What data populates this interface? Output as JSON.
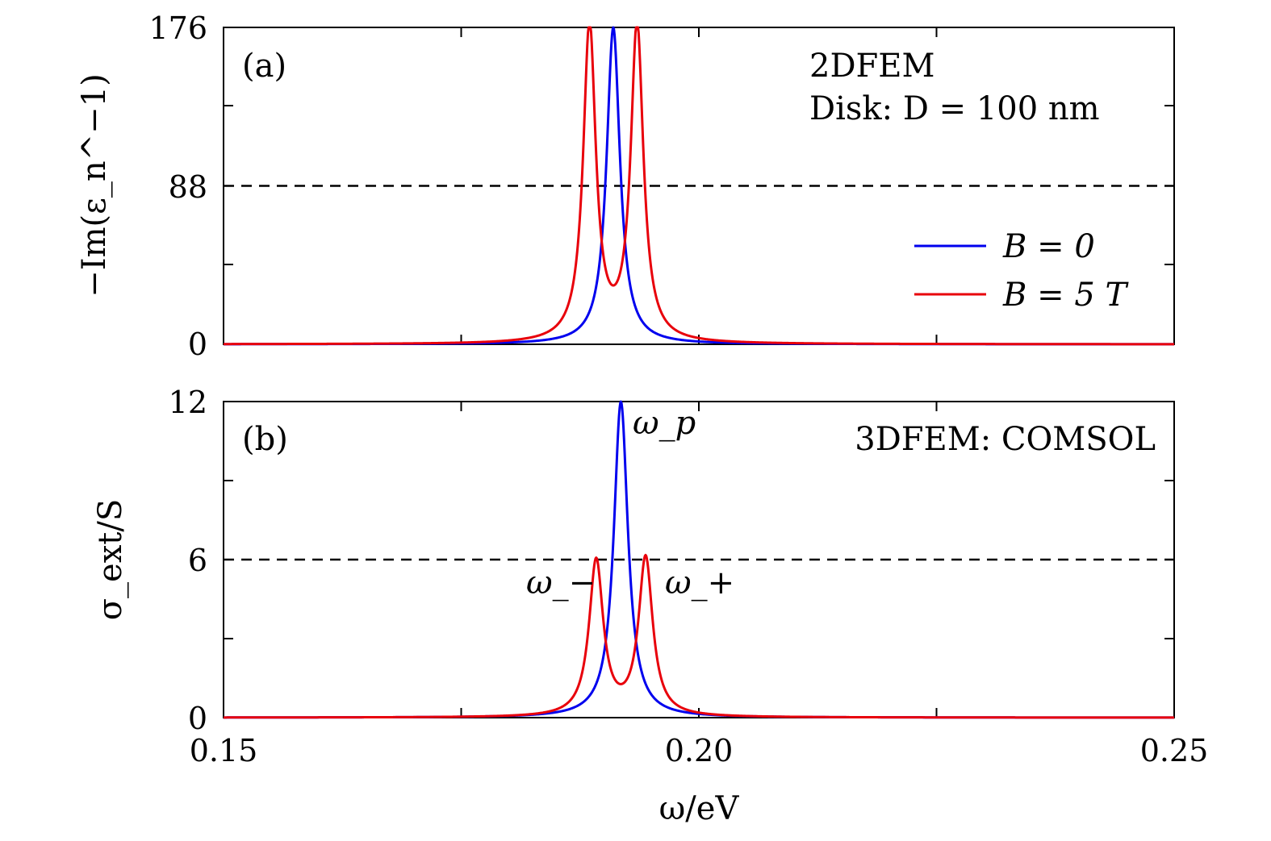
{
  "colors": {
    "blue": "#0000ee",
    "red": "#e8000b",
    "reference": "#000000"
  },
  "xlabel": "ω/eV",
  "x_tick_labels": [
    "0.15",
    "0.20",
    "0.25"
  ],
  "chart_data": [
    {
      "type": "line",
      "panel_label": "(a)",
      "annotation_lines": [
        "2DFEM",
        "Disk: D = 100 nm"
      ],
      "xlabel": "ω/eV",
      "ylabel": "−Im(ε_n^−1)",
      "xlim": [
        0.15,
        0.25
      ],
      "ylim": [
        0,
        176
      ],
      "y_tick_labels": [
        "0",
        "88",
        "176"
      ],
      "reference_line": {
        "y": 88,
        "style": "dashed"
      },
      "legend": {
        "position": "right",
        "entries": [
          "B = 0",
          "B = 5 T"
        ]
      },
      "series": [
        {
          "name": "B = 0",
          "color": "#0000ee",
          "peaks": [
            {
              "x": 0.191,
              "y": 176,
              "width": 0.00085
            }
          ]
        },
        {
          "name": "B = 5 T",
          "color": "#e8000b",
          "peaks": [
            {
              "x": 0.1885,
              "y": 176,
              "width": 0.0008
            },
            {
              "x": 0.1935,
              "y": 176,
              "width": 0.0008
            }
          ]
        }
      ]
    },
    {
      "type": "line",
      "panel_label": "(b)",
      "annotation_lines": [
        "3DFEM: COMSOL"
      ],
      "peak_labels": [
        "ω_p",
        "ω_−",
        "ω_+"
      ],
      "xlabel": "ω/eV",
      "ylabel": "σ_ext/S",
      "xlim": [
        0.15,
        0.25
      ],
      "ylim": [
        0,
        12
      ],
      "y_tick_labels": [
        "0",
        "6",
        "12"
      ],
      "reference_line": {
        "y": 6,
        "style": "dashed"
      },
      "series": [
        {
          "name": "B = 0",
          "color": "#0000ee",
          "peaks": [
            {
              "x": 0.1918,
              "y": 12,
              "width": 0.0009
            }
          ]
        },
        {
          "name": "B = 5 T",
          "color": "#e8000b",
          "peaks": [
            {
              "x": 0.1892,
              "y": 5.9,
              "width": 0.0009
            },
            {
              "x": 0.1944,
              "y": 6.0,
              "width": 0.0009
            }
          ]
        }
      ]
    }
  ]
}
